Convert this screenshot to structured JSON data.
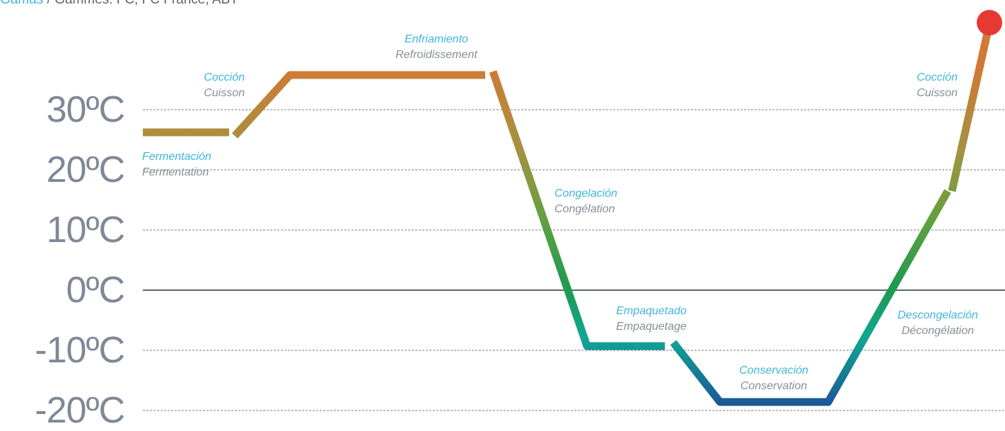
{
  "header": {
    "prefix": "Gamas",
    "separator": " / ",
    "text": "Gammes: FC, FC France, ABT"
  },
  "colors": {
    "spanish": "#3fb6dd",
    "french": "#868e96",
    "axis_label": "#7f8896",
    "zero_line": "#5d6670",
    "grid": "#7a7f86",
    "end_marker": "#e43a32"
  },
  "y_axis": {
    "unit": "ºC",
    "labels": [
      "30ºC",
      "20ºC",
      "10ºC",
      "0ºC",
      "-10ºC",
      "-20ºC"
    ]
  },
  "stages": [
    {
      "es": "Fermentación",
      "fr": "Fermentation"
    },
    {
      "es": "Cocción",
      "fr": "Cuisson"
    },
    {
      "es": "Enfriamiento",
      "fr": "Refroidissement"
    },
    {
      "es": "Congelación",
      "fr": "Congélation"
    },
    {
      "es": "Empaquetado",
      "fr": "Empaquetage"
    },
    {
      "es": "Conservación",
      "fr": "Conservation"
    },
    {
      "es": "Descongelación",
      "fr": "Décongélation"
    },
    {
      "es": "Cocción",
      "fr": "Cuisson"
    }
  ]
}
